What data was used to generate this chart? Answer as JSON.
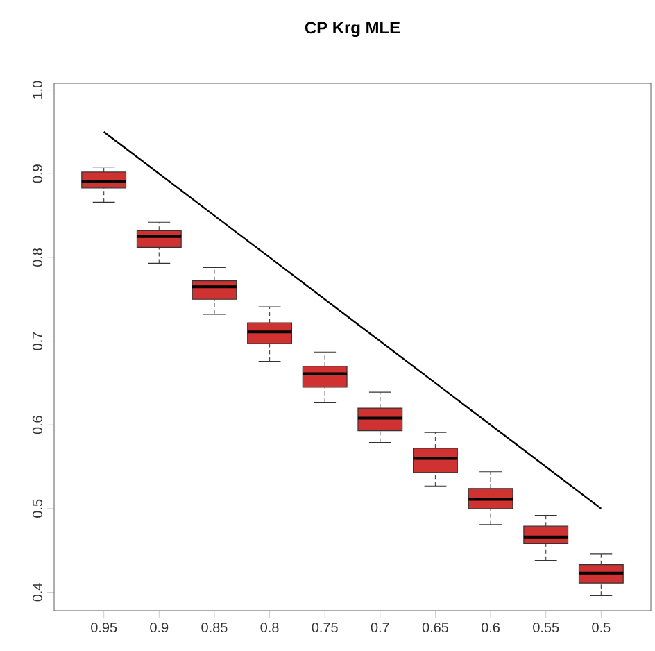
{
  "chart_data": {
    "type": "box",
    "title": "CP Krg MLE",
    "categories": [
      "0.95",
      "0.9",
      "0.85",
      "0.8",
      "0.75",
      "0.7",
      "0.65",
      "0.6",
      "0.55",
      "0.5"
    ],
    "ylim": [
      0.378,
      1.008
    ],
    "yticks": [
      0.4,
      0.5,
      0.6,
      0.7,
      0.8,
      0.9,
      {
        "value": 1.0,
        "label": "1.0"
      }
    ],
    "series": [
      {
        "type": "box",
        "color": "#d03232",
        "boxes": [
          {
            "low": 0.866,
            "q1": 0.883,
            "median": 0.891,
            "q3": 0.902,
            "high": 0.908
          },
          {
            "low": 0.793,
            "q1": 0.812,
            "median": 0.825,
            "q3": 0.832,
            "high": 0.842
          },
          {
            "low": 0.732,
            "q1": 0.75,
            "median": 0.765,
            "q3": 0.772,
            "high": 0.788
          },
          {
            "low": 0.676,
            "q1": 0.697,
            "median": 0.711,
            "q3": 0.722,
            "high": 0.741
          },
          {
            "low": 0.627,
            "q1": 0.645,
            "median": 0.661,
            "q3": 0.67,
            "high": 0.687
          },
          {
            "low": 0.579,
            "q1": 0.593,
            "median": 0.608,
            "q3": 0.62,
            "high": 0.639
          },
          {
            "low": 0.527,
            "q1": 0.543,
            "median": 0.56,
            "q3": 0.572,
            "high": 0.591
          },
          {
            "low": 0.481,
            "q1": 0.5,
            "median": 0.511,
            "q3": 0.524,
            "high": 0.544
          },
          {
            "low": 0.438,
            "q1": 0.458,
            "median": 0.466,
            "q3": 0.479,
            "high": 0.492
          },
          {
            "low": 0.396,
            "q1": 0.411,
            "median": 0.423,
            "q3": 0.433,
            "high": 0.446
          }
        ]
      },
      {
        "type": "line",
        "color": "#000000",
        "values": [
          0.95,
          0.9,
          0.85,
          0.8,
          0.75,
          0.7,
          0.65,
          0.6,
          0.55,
          0.5
        ]
      }
    ]
  }
}
